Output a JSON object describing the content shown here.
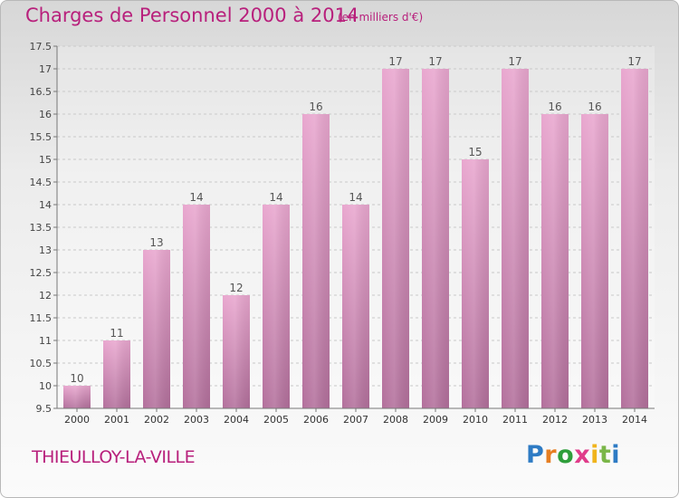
{
  "title": "Charges de Personnel 2000 à 2014",
  "unit_note": "(en milliers d'€)",
  "location": "THIEULLOY-LA-VILLE",
  "logo": {
    "text": "Proxiti",
    "letters": [
      "P",
      "r",
      "o",
      "x",
      "i",
      "t",
      "i"
    ]
  },
  "colors": {
    "title": "#b8207c",
    "bar_top": "#e9a7cf",
    "bar_bottom": "#b3709c"
  },
  "chart_data": {
    "type": "bar",
    "title": "Charges de Personnel 2000 à 2014",
    "categories": [
      "2000",
      "2001",
      "2002",
      "2003",
      "2004",
      "2005",
      "2006",
      "2007",
      "2008",
      "2009",
      "2010",
      "2011",
      "2012",
      "2013",
      "2014"
    ],
    "values": [
      10,
      11,
      13,
      14,
      12,
      14,
      16,
      14,
      17,
      17,
      15,
      17,
      16,
      16,
      17
    ],
    "data_labels": [
      "10",
      "11",
      "13",
      "14",
      "12",
      "14",
      "16",
      "14",
      "17",
      "17",
      "15",
      "17",
      "16",
      "16",
      "17"
    ],
    "ylim": [
      9.5,
      17.5
    ],
    "yticks": [
      9.5,
      10,
      10.5,
      11,
      11.5,
      12,
      12.5,
      13,
      13.5,
      14,
      14.5,
      15,
      15.5,
      16,
      16.5,
      17,
      17.5
    ],
    "ytick_labels": [
      "9.5",
      "10",
      "10.5",
      "11",
      "11.5",
      "12",
      "12.5",
      "13",
      "13.5",
      "14",
      "14.5",
      "15",
      "15.5",
      "16",
      "16.5",
      "17",
      "17.5"
    ],
    "grid": true
  }
}
